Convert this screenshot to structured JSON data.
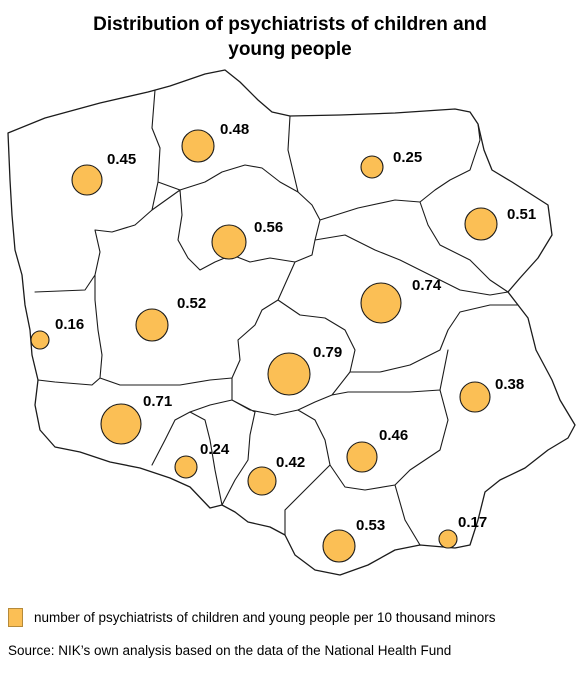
{
  "title": "Distribution of psychiatrists of children and young people",
  "legend": {
    "label": "number of psychiatrists of children and young people per 10 thousand minors",
    "color": "#fbbf55"
  },
  "source": "Source: NIK’s own analysis based on the data of the National Health Fund",
  "regions": [
    {
      "id": "zachodniopomorskie",
      "value": "0.45"
    },
    {
      "id": "pomorskie",
      "value": "0.48"
    },
    {
      "id": "warminsko-mazurskie",
      "value": "0.25"
    },
    {
      "id": "podlaskie",
      "value": "0.51"
    },
    {
      "id": "kujawsko-pomorskie",
      "value": "0.56"
    },
    {
      "id": "lubuskie",
      "value": "0.16"
    },
    {
      "id": "wielkopolskie",
      "value": "0.52"
    },
    {
      "id": "mazowieckie",
      "value": "0.74"
    },
    {
      "id": "lodzkie",
      "value": "0.79"
    },
    {
      "id": "lubelskie",
      "value": "0.38"
    },
    {
      "id": "dolnoslaskie",
      "value": "0.71"
    },
    {
      "id": "opolskie",
      "value": "0.24"
    },
    {
      "id": "slaskie",
      "value": "0.42"
    },
    {
      "id": "swietokrzyskie",
      "value": "0.46"
    },
    {
      "id": "malopolskie",
      "value": "0.53"
    },
    {
      "id": "podkarpackie",
      "value": "0.17"
    }
  ]
}
